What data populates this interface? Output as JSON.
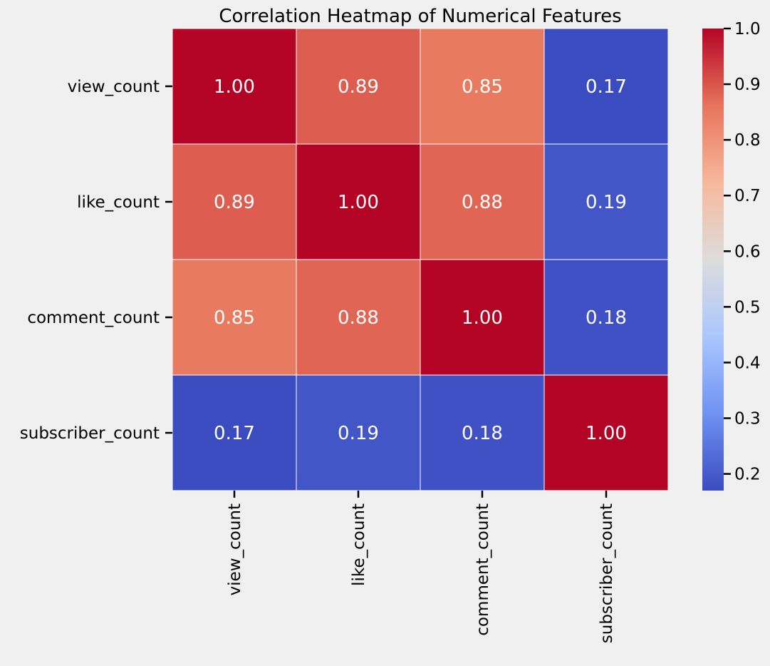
{
  "chart_data": {
    "type": "heatmap",
    "title": "Correlation Heatmap of Numerical Features",
    "xlabel": "",
    "ylabel": "",
    "row_labels": [
      "view_count",
      "like_count",
      "comment_count",
      "subscriber_count"
    ],
    "col_labels": [
      "view_count",
      "like_count",
      "comment_count",
      "subscriber_count"
    ],
    "values": [
      [
        1.0,
        0.89,
        0.85,
        0.17
      ],
      [
        0.89,
        1.0,
        0.88,
        0.19
      ],
      [
        0.85,
        0.88,
        1.0,
        0.18
      ],
      [
        0.17,
        0.19,
        0.18,
        1.0
      ]
    ],
    "annotation_format": "0.00",
    "colormap": "coolwarm",
    "colorbar": {
      "range": [
        0.17,
        1.0
      ],
      "ticks": [
        0.2,
        0.3,
        0.4,
        0.5,
        0.6,
        0.7,
        0.8,
        0.9,
        1.0
      ],
      "tick_labels": [
        "0.2",
        "0.3",
        "0.4",
        "0.5",
        "0.6",
        "0.7",
        "0.8",
        "0.9",
        "1.0"
      ]
    },
    "colors": {
      "background": "#f0f0f0",
      "cell_border": "#ffffff",
      "annotation_text": "#ffffff",
      "axis_text": "#000000",
      "colormap_stops": [
        "#3b4cc0",
        "#6f92f3",
        "#aac7fd",
        "#dddcdc",
        "#f7b89c",
        "#e7745b",
        "#b40426"
      ]
    }
  }
}
